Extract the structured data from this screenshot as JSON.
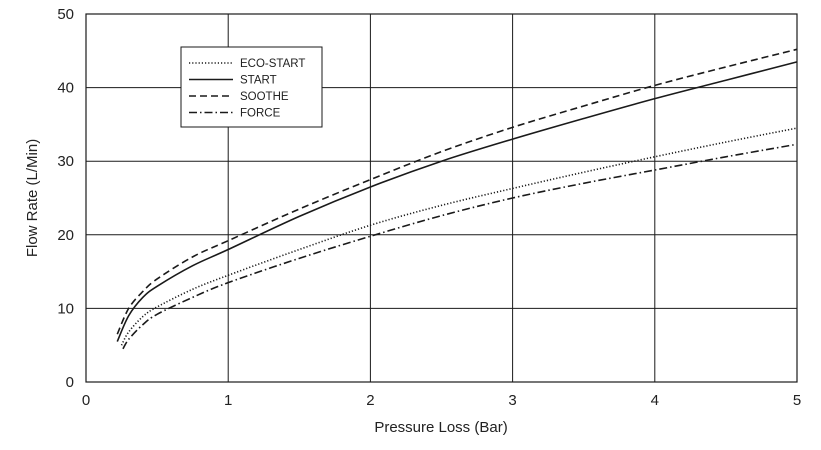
{
  "chart_data": {
    "type": "line",
    "title": "",
    "xlabel": "Pressure Loss (Bar)",
    "ylabel": "Flow Rate (L/Min)",
    "xlim": [
      0,
      5
    ],
    "ylim": [
      0,
      50
    ],
    "xticks": [
      "0",
      "1",
      "2",
      "3",
      "4",
      "5"
    ],
    "yticks": [
      "0",
      "10",
      "20",
      "30",
      "40",
      "50"
    ],
    "grid": true,
    "legend_position": "top-left",
    "series": [
      {
        "name": "ECO-START",
        "dash": "dotted",
        "x": [
          0.25,
          0.3,
          0.4,
          0.5,
          0.75,
          1,
          1.5,
          2,
          2.5,
          3,
          3.5,
          4,
          4.5,
          5
        ],
        "y": [
          5.0,
          6.8,
          8.9,
          10.2,
          12.6,
          14.5,
          18.0,
          21.3,
          24.0,
          26.3,
          28.5,
          30.6,
          32.6,
          34.5
        ]
      },
      {
        "name": "START",
        "dash": "solid",
        "x": [
          0.22,
          0.3,
          0.4,
          0.5,
          0.75,
          1,
          1.5,
          2,
          2.5,
          3,
          3.5,
          4,
          4.5,
          5
        ],
        "y": [
          5.5,
          9.0,
          11.5,
          13.0,
          15.8,
          18.0,
          22.5,
          26.5,
          30.0,
          33.0,
          35.8,
          38.5,
          41.0,
          43.5
        ]
      },
      {
        "name": "SOOTHE",
        "dash": "dashed",
        "x": [
          0.22,
          0.3,
          0.4,
          0.5,
          0.75,
          1,
          1.5,
          2,
          2.5,
          3,
          3.5,
          4,
          4.5,
          5
        ],
        "y": [
          6.5,
          10.0,
          12.3,
          14.0,
          17.0,
          19.2,
          23.5,
          27.5,
          31.3,
          34.6,
          37.5,
          40.3,
          42.8,
          45.2
        ]
      },
      {
        "name": "FORCE",
        "dash": "dashdot",
        "x": [
          0.26,
          0.3,
          0.4,
          0.5,
          0.75,
          1,
          1.5,
          2,
          2.5,
          3,
          3.5,
          4,
          4.5,
          5
        ],
        "y": [
          4.5,
          5.8,
          7.8,
          9.2,
          11.5,
          13.5,
          16.8,
          19.8,
          22.6,
          25.0,
          27.0,
          28.8,
          30.6,
          32.3
        ]
      }
    ]
  }
}
